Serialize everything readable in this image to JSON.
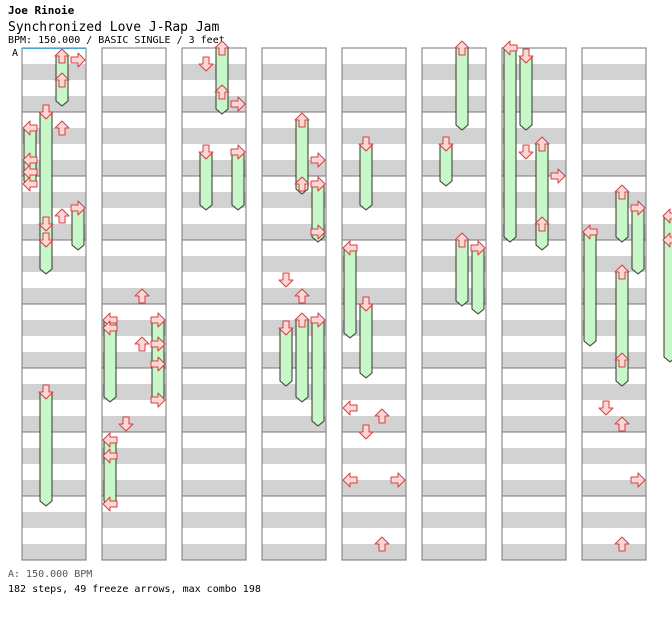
{
  "artist": "Joe Rinoie",
  "title": "Synchronized Love J-Rap Jam",
  "chart_info": "BPM: 150.000 / BASIC SINGLE / 3 feet",
  "bpm_marker": "A",
  "footer_bpm": "A: 150.000 BPM",
  "footer_stats": "182 steps, 49 freeze arrows, max combo 198",
  "colors": {
    "band": "#d2d2d2",
    "arrow_fill": "#ffd6d6",
    "arrow_stroke": "#d04040",
    "freeze_fill": "#c8f8c8",
    "bpm_line": "#4aa3d8"
  },
  "chart_data": {
    "type": "step-chart",
    "columns": 8,
    "measures_per_column": 8,
    "lanes": [
      "left",
      "down",
      "up",
      "right"
    ],
    "notes": [
      [
        1,
        "right",
        0.25
      ],
      [
        1,
        "up",
        1.5
      ],
      [
        2,
        "up",
        4.5
      ],
      [
        3,
        "left",
        6.5
      ],
      [
        3,
        "left",
        7.25
      ],
      [
        3,
        "left",
        8.0
      ],
      [
        4,
        "up",
        10.0
      ],
      [
        4,
        "down",
        11.5
      ],
      [
        5,
        "up",
        15.0
      ],
      [
        5,
        "left",
        17.0
      ],
      [
        5,
        "up",
        18.0
      ],
      [
        5,
        "right",
        18.0
      ],
      [
        5,
        "right",
        19.25
      ],
      [
        6,
        "right",
        21.5
      ],
      [
        6,
        "down",
        23.0
      ],
      [
        6,
        "left",
        25.0
      ],
      [
        7,
        "left",
        28.0
      ],
      [
        8,
        "down",
        32.5
      ],
      [
        8,
        "up",
        34.25
      ],
      [
        8,
        "right",
        35.0
      ],
      [
        9,
        "right",
        38.5
      ],
      [
        10,
        "up",
        40.0
      ],
      [
        11,
        "right",
        43.0
      ],
      [
        12,
        "down",
        46.0
      ],
      [
        12,
        "up",
        47.0
      ],
      [
        14,
        "left",
        54.0
      ],
      [
        14,
        "up",
        54.5
      ],
      [
        14,
        "down",
        55.5
      ],
      [
        15,
        "left",
        58.5
      ],
      [
        15,
        "right",
        58.5
      ],
      [
        16,
        "up",
        62.5
      ],
      [
        18,
        "down",
        70.0
      ],
      [
        18,
        "right",
        71.5
      ],
      [
        19,
        "up",
        74.5
      ],
      [
        21,
        "up",
        83.0
      ],
      [
        22,
        "down",
        86.0
      ],
      [
        22,
        "up",
        87.0
      ],
      [
        23,
        "right",
        90.5
      ],
      [
        24,
        "up",
        94.5
      ],
      [
        25,
        "right",
        100.0
      ],
      [
        26,
        "right",
        102.0
      ],
      [
        26,
        "up",
        104.5
      ],
      [
        26,
        "down",
        105.25
      ],
      [
        27,
        "right",
        108.0
      ],
      [
        27,
        "down",
        110.0
      ],
      [
        28,
        "left",
        112.0
      ],
      [
        28,
        "up",
        112.5
      ],
      [
        28,
        "down",
        113.5
      ],
      [
        28,
        "right",
        114.5
      ],
      [
        29,
        "right",
        116.0
      ],
      [
        29,
        "up",
        118.0
      ],
      [
        30,
        "left",
        120.0
      ],
      [
        31,
        "up",
        126.0
      ],
      [
        32,
        "right",
        128.5
      ]
    ],
    "freezes": [
      [
        1,
        "down",
        4.0,
        12.0
      ],
      [
        1,
        "down",
        21.5,
        28.5
      ],
      [
        2,
        "up",
        0.5,
        3.5
      ],
      [
        2,
        "left",
        5.0,
        8.5
      ],
      [
        3,
        "right",
        10.0,
        12.5
      ],
      [
        3,
        "down",
        11.0,
        14.0
      ],
      [
        4,
        "left",
        17.0,
        22.0
      ],
      [
        5,
        "right",
        17.0,
        22.0
      ],
      [
        6,
        "left",
        24.5,
        28.5
      ],
      [
        7,
        "right",
        6.5,
        10.0
      ],
      [
        8,
        "up",
        0.0,
        4.0
      ],
      [
        9,
        "down",
        6.5,
        10.0
      ],
      [
        10,
        "up",
        4.5,
        9.0
      ],
      [
        11,
        "right",
        8.5,
        12.0
      ],
      [
        11,
        "down",
        17.5,
        21.0
      ],
      [
        12,
        "up",
        17.0,
        22.0
      ],
      [
        12,
        "right",
        17.0,
        23.5
      ],
      [
        13,
        "left",
        12.5,
        18.0
      ],
      [
        14,
        "down",
        16.0,
        20.5
      ],
      [
        15,
        "down",
        6.0,
        10.0
      ],
      [
        16,
        "up",
        12.0,
        16.0
      ],
      [
        17,
        "up",
        0.0,
        5.0
      ],
      [
        17,
        "down",
        6.0,
        8.5
      ],
      [
        18,
        "right",
        12.5,
        16.5
      ],
      [
        19,
        "left",
        0.0,
        12.0
      ],
      [
        20,
        "up",
        6.0,
        12.5
      ],
      [
        21,
        "down",
        0.5,
        5.0
      ],
      [
        22,
        "left",
        11.5,
        18.5
      ],
      [
        22,
        "up",
        14.0,
        21.0
      ],
      [
        23,
        "up",
        9.0,
        12.0
      ],
      [
        24,
        "right",
        10.0,
        14.0
      ],
      [
        25,
        "left",
        10.5,
        16.0
      ],
      [
        25,
        "right",
        10.5,
        16.0
      ],
      [
        26,
        "down",
        12.5,
        18.0
      ],
      [
        27,
        "left",
        12.0,
        19.5
      ],
      [
        28,
        "right",
        4.5,
        10.0
      ],
      [
        29,
        "left",
        0.0,
        10.0
      ],
      [
        30,
        "right",
        18.5,
        25.0
      ],
      [
        31,
        "down",
        12.0,
        16.5
      ],
      [
        32,
        "up",
        22.0,
        27.0
      ],
      [
        33,
        "up",
        0.0,
        6.5
      ],
      [
        33,
        "left",
        9.0,
        20.0
      ],
      [
        34,
        "down",
        9.5,
        13.0
      ],
      [
        35,
        "left",
        4.0,
        8.0
      ],
      [
        36,
        "right",
        4.0,
        8.0
      ],
      [
        37,
        "down",
        2.5,
        6.0
      ],
      [
        37,
        "right",
        2.0,
        6.0
      ],
      [
        38,
        "up",
        6.5,
        10.5
      ],
      [
        39,
        "down",
        11.0,
        17.0
      ]
    ]
  }
}
